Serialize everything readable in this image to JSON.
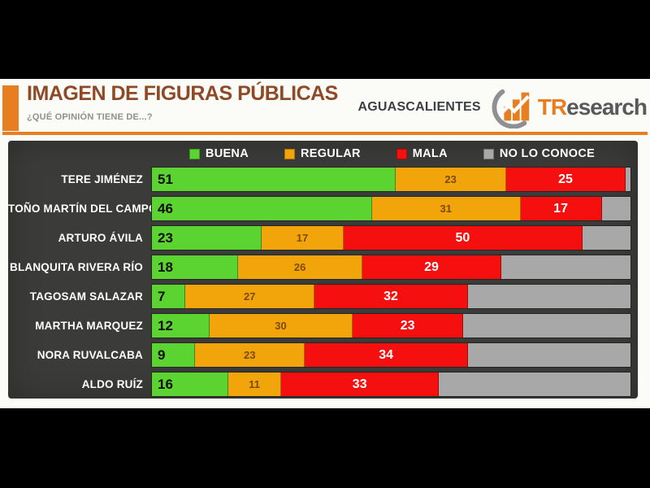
{
  "header": {
    "title": "IMAGEN DE FIGURAS PÚBLICAS",
    "subtitle": "¿QUÉ OPINIÓN TIENE DE...?",
    "region": "AGUASCALIENTES",
    "brand_prefix": "TR",
    "brand_suffix": "esearch",
    "logo_icon": "tresearch-bars-swoosh-logo"
  },
  "colors": {
    "accent_orange": "#E87E22",
    "title_brown": "#8E4A26",
    "panel_bg": "#3B3B39",
    "buena_green": "#5BD431",
    "regular_orange": "#F2A50B",
    "mala_red": "#F50F0F",
    "no_conoce_gray": "#A8A8A8"
  },
  "chart_data": {
    "type": "bar",
    "stacked": true,
    "orientation": "horizontal",
    "title": "IMAGEN DE FIGURAS PÚBLICAS",
    "subtitle": "¿QUÉ OPINIÓN TIENE DE...?",
    "region": "AGUASCALIENTES",
    "xlim": [
      0,
      100
    ],
    "grid": false,
    "legend_position": "top",
    "categories": [
      "TERE JIMÉNEZ",
      "TOÑO MARTÍN DEL CAMPO",
      "ARTURO ÁVILA",
      "BLANQUITA RIVERA RÍO",
      "TAGOSAM SALAZAR",
      "MARTHA MARQUEZ",
      "NORA RUVALCABA",
      "ALDO RUÍZ"
    ],
    "series": [
      {
        "name": "BUENA",
        "color": "#5BD431",
        "show_labels": true,
        "values": [
          51,
          46,
          23,
          18,
          7,
          12,
          9,
          16
        ]
      },
      {
        "name": "REGULAR",
        "color": "#F2A50B",
        "show_labels": true,
        "values": [
          23,
          31,
          17,
          26,
          27,
          30,
          23,
          11
        ]
      },
      {
        "name": "MALA",
        "color": "#F50F0F",
        "show_labels": true,
        "values": [
          25,
          17,
          50,
          29,
          32,
          23,
          34,
          33
        ]
      },
      {
        "name": "NO LO CONOCE",
        "color": "#A8A8A8",
        "show_labels": false,
        "values": [
          1,
          6,
          10,
          27,
          34,
          35,
          34,
          40
        ]
      }
    ]
  }
}
